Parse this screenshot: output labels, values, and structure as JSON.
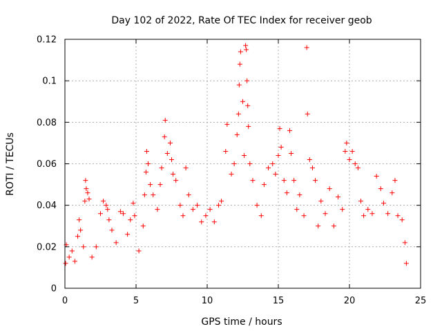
{
  "chart_data": {
    "type": "scatter",
    "title": "Day 102 of 2022, Rate Of TEC Index for receiver geob",
    "xlabel": "GPS time / hours",
    "ylabel": "ROTI / TECUs",
    "xlim": [
      0,
      25
    ],
    "ylim": [
      0,
      0.12
    ],
    "x_ticks": [
      0,
      5,
      10,
      15,
      20,
      25
    ],
    "y_ticks": [
      0,
      0.02,
      0.04,
      0.06,
      0.08,
      0.1,
      0.12
    ],
    "grid": true,
    "marker": "+",
    "color": "#ff0000",
    "series": [
      {
        "points": [
          [
            0.05,
            0.012
          ],
          [
            0.1,
            0.021
          ],
          [
            0.3,
            0.015
          ],
          [
            0.5,
            0.018
          ],
          [
            0.7,
            0.013
          ],
          [
            0.9,
            0.025
          ],
          [
            1.0,
            0.033
          ],
          [
            1.1,
            0.028
          ],
          [
            1.3,
            0.02
          ],
          [
            1.4,
            0.042
          ],
          [
            1.45,
            0.052
          ],
          [
            1.5,
            0.048
          ],
          [
            1.6,
            0.046
          ],
          [
            1.7,
            0.043
          ],
          [
            1.9,
            0.015
          ],
          [
            2.2,
            0.02
          ],
          [
            2.5,
            0.036
          ],
          [
            2.7,
            0.042
          ],
          [
            2.9,
            0.04
          ],
          [
            3.0,
            0.038
          ],
          [
            3.1,
            0.033
          ],
          [
            3.3,
            0.028
          ],
          [
            3.6,
            0.022
          ],
          [
            3.9,
            0.037
          ],
          [
            4.1,
            0.036
          ],
          [
            4.4,
            0.026
          ],
          [
            4.6,
            0.033
          ],
          [
            4.8,
            0.041
          ],
          [
            4.9,
            0.035
          ],
          [
            5.2,
            0.018
          ],
          [
            5.5,
            0.03
          ],
          [
            5.6,
            0.045
          ],
          [
            5.7,
            0.056
          ],
          [
            5.75,
            0.066
          ],
          [
            5.85,
            0.06
          ],
          [
            6.0,
            0.05
          ],
          [
            6.2,
            0.045
          ],
          [
            6.5,
            0.038
          ],
          [
            6.7,
            0.05
          ],
          [
            6.8,
            0.058
          ],
          [
            7.0,
            0.073
          ],
          [
            7.05,
            0.081
          ],
          [
            7.2,
            0.065
          ],
          [
            7.4,
            0.07
          ],
          [
            7.5,
            0.062
          ],
          [
            7.6,
            0.055
          ],
          [
            7.8,
            0.052
          ],
          [
            8.1,
            0.04
          ],
          [
            8.3,
            0.035
          ],
          [
            8.5,
            0.058
          ],
          [
            8.7,
            0.045
          ],
          [
            9.0,
            0.038
          ],
          [
            9.3,
            0.04
          ],
          [
            9.6,
            0.032
          ],
          [
            9.9,
            0.035
          ],
          [
            10.2,
            0.038
          ],
          [
            10.5,
            0.032
          ],
          [
            10.8,
            0.04
          ],
          [
            11.0,
            0.042
          ],
          [
            11.3,
            0.066
          ],
          [
            11.4,
            0.079
          ],
          [
            11.7,
            0.055
          ],
          [
            11.9,
            0.06
          ],
          [
            12.1,
            0.074
          ],
          [
            12.2,
            0.084
          ],
          [
            12.25,
            0.098
          ],
          [
            12.3,
            0.108
          ],
          [
            12.35,
            0.114
          ],
          [
            12.5,
            0.09
          ],
          [
            12.6,
            0.064
          ],
          [
            12.7,
            0.117
          ],
          [
            12.75,
            0.115
          ],
          [
            12.8,
            0.1
          ],
          [
            12.85,
            0.088
          ],
          [
            12.9,
            0.078
          ],
          [
            13.0,
            0.06
          ],
          [
            13.2,
            0.052
          ],
          [
            13.5,
            0.04
          ],
          [
            13.8,
            0.035
          ],
          [
            14.0,
            0.05
          ],
          [
            14.3,
            0.058
          ],
          [
            14.6,
            0.06
          ],
          [
            14.8,
            0.055
          ],
          [
            15.0,
            0.064
          ],
          [
            15.1,
            0.077
          ],
          [
            15.2,
            0.068
          ],
          [
            15.4,
            0.052
          ],
          [
            15.6,
            0.046
          ],
          [
            15.8,
            0.076
          ],
          [
            15.9,
            0.065
          ],
          [
            16.1,
            0.052
          ],
          [
            16.3,
            0.038
          ],
          [
            16.5,
            0.045
          ],
          [
            16.8,
            0.035
          ],
          [
            17.0,
            0.116
          ],
          [
            17.05,
            0.084
          ],
          [
            17.2,
            0.062
          ],
          [
            17.4,
            0.058
          ],
          [
            17.6,
            0.052
          ],
          [
            17.8,
            0.03
          ],
          [
            18.0,
            0.042
          ],
          [
            18.3,
            0.036
          ],
          [
            18.6,
            0.048
          ],
          [
            18.9,
            0.03
          ],
          [
            19.2,
            0.044
          ],
          [
            19.5,
            0.038
          ],
          [
            19.7,
            0.066
          ],
          [
            19.8,
            0.07
          ],
          [
            20.0,
            0.062
          ],
          [
            20.2,
            0.066
          ],
          [
            20.4,
            0.06
          ],
          [
            20.6,
            0.058
          ],
          [
            20.8,
            0.042
          ],
          [
            21.0,
            0.035
          ],
          [
            21.3,
            0.038
          ],
          [
            21.6,
            0.036
          ],
          [
            21.9,
            0.054
          ],
          [
            22.2,
            0.048
          ],
          [
            22.4,
            0.041
          ],
          [
            22.7,
            0.036
          ],
          [
            23.0,
            0.046
          ],
          [
            23.2,
            0.052
          ],
          [
            23.4,
            0.035
          ],
          [
            23.7,
            0.033
          ],
          [
            23.9,
            0.022
          ],
          [
            24.0,
            0.012
          ]
        ]
      }
    ]
  }
}
